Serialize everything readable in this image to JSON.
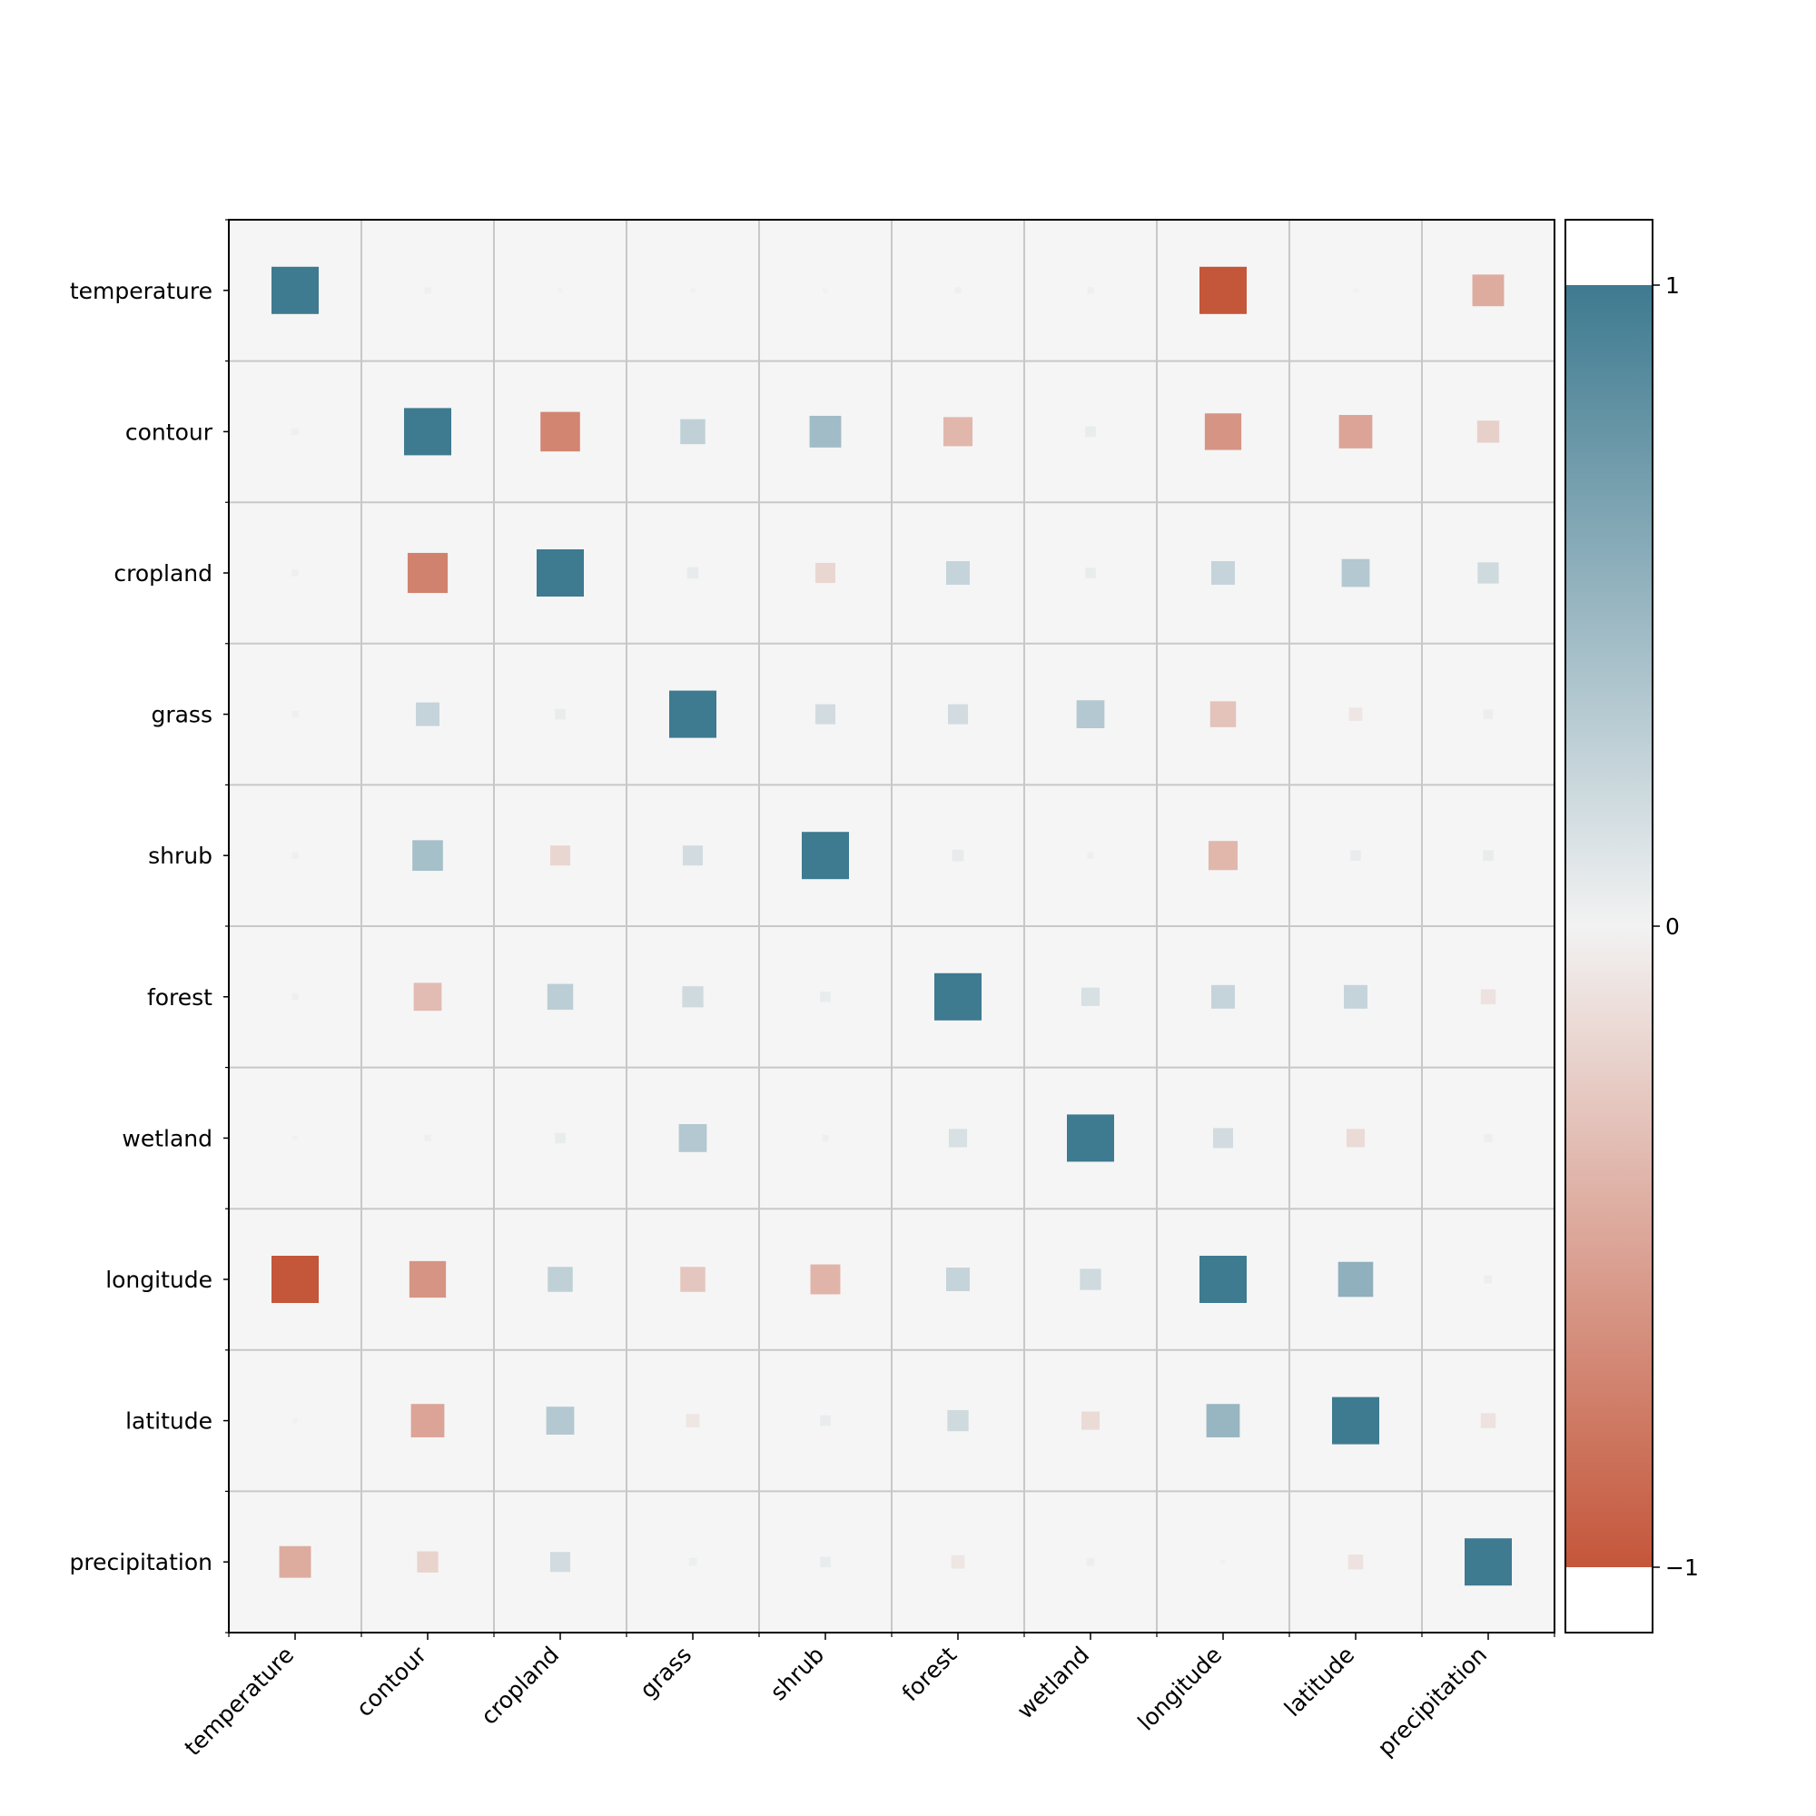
{
  "chart_data": {
    "type": "heatmap",
    "variables": [
      "temperature",
      "contour",
      "cropland",
      "grass",
      "shrub",
      "forest",
      "wetland",
      "longitude",
      "latitude",
      "precipitation"
    ],
    "matrix": [
      [
        1.0,
        0.02,
        0.01,
        0.01,
        0.01,
        0.02,
        0.02,
        -1.0,
        0.01,
        -0.45
      ],
      [
        -0.02,
        1.0,
        -0.7,
        0.28,
        0.45,
        -0.38,
        0.05,
        -0.6,
        -0.5,
        -0.22
      ],
      [
        -0.02,
        -0.72,
        1.0,
        0.06,
        -0.18,
        0.25,
        0.05,
        0.25,
        0.35,
        0.2
      ],
      [
        0.02,
        0.25,
        0.05,
        1.0,
        0.18,
        0.18,
        0.35,
        -0.3,
        -0.08,
        0.04
      ],
      [
        0.02,
        0.42,
        -0.18,
        0.18,
        1.0,
        0.06,
        0.02,
        -0.38,
        0.05,
        0.05
      ],
      [
        0.02,
        -0.35,
        0.3,
        0.2,
        0.05,
        1.0,
        0.15,
        0.25,
        0.25,
        -0.1
      ],
      [
        -0.01,
        0.02,
        0.05,
        0.35,
        0.02,
        0.15,
        1.0,
        0.18,
        -0.15,
        0.03
      ],
      [
        -1.0,
        -0.6,
        0.28,
        -0.28,
        -0.4,
        0.25,
        0.2,
        1.0,
        0.55,
        0.03
      ],
      [
        -0.01,
        -0.5,
        0.35,
        -0.08,
        0.05,
        0.2,
        -0.15,
        0.5,
        1.0,
        -0.1
      ],
      [
        -0.45,
        -0.2,
        0.18,
        0.03,
        0.05,
        -0.08,
        0.03,
        0.01,
        -0.1,
        1.0
      ]
    ],
    "colorbar": {
      "ticks": [
        1,
        0,
        -1
      ],
      "tick_labels": [
        "1",
        "0",
        "−1"
      ],
      "min": -1,
      "max": 1
    },
    "colors": {
      "positive": "#3e7a90",
      "neutral": "#f2f2f2",
      "negative": "#c4563a",
      "cell_background": "#f5f5f5",
      "grid": "#c8c8c8"
    },
    "grid": true
  }
}
